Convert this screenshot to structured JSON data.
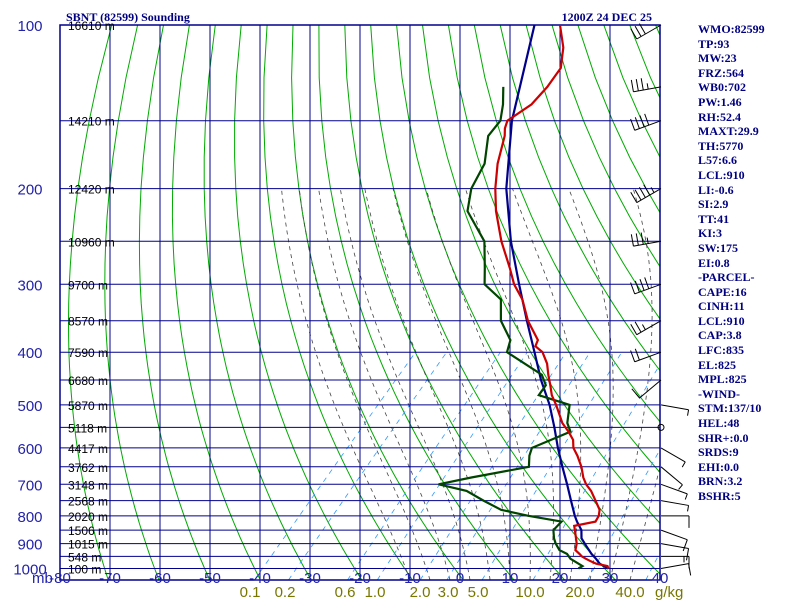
{
  "header": {
    "station": "SBNT (82599) Sounding",
    "time": "1200Z 24 DEC 25"
  },
  "indices": [
    "WMO:82599",
    "TP:93",
    "MW:23",
    "FRZ:564",
    "WB0:702",
    "PW:1.46",
    "RH:52.4",
    "MAXT:29.9",
    "TH:5770",
    "L57:6.6",
    "LCL:910",
    "LI:-0.6",
    "SI:2.9",
    "TT:41",
    "KI:3",
    "SW:175",
    "EI:0.8",
    "-PARCEL-",
    "CAPE:16",
    "CINH:11",
    "LCL:910",
    "CAP:3.8",
    "LFC:835",
    "EL:825",
    "MPL:825",
    "-WIND-",
    "STM:137/10",
    "HEL:48",
    "SHR+:0.0",
    "SRDS:9",
    "EHI:0.0",
    "BRN:3.2",
    "BSHR:5"
  ],
  "colors": {
    "grid": "#00008b",
    "temperature": "#cc0000",
    "dewpoint": "#004400",
    "parcel": "#00008b",
    "dry_adiabat": "#00aa00",
    "moist_adiabat": "#444444",
    "mixing_ratio": "#3399ff",
    "wind": "#000000"
  },
  "chart_data": {
    "type": "skew-t",
    "title": "SBNT (82599) Sounding",
    "p_range": [
      1050,
      100
    ],
    "t_range": [
      -80,
      40
    ],
    "pressure_label": "mb",
    "pressure_ticks": [
      100,
      200,
      300,
      400,
      500,
      600,
      700,
      800,
      900,
      1000
    ],
    "temp_ticks": [
      -80,
      -70,
      -60,
      -50,
      -40,
      -30,
      -20,
      -10,
      0,
      10,
      20,
      30,
      40
    ],
    "height_labels": [
      {
        "p": 100,
        "text": "16610 m"
      },
      {
        "p": 150,
        "text": "14210 m"
      },
      {
        "p": 200,
        "text": "12420 m"
      },
      {
        "p": 250,
        "text": "10960 m"
      },
      {
        "p": 300,
        "text": "9700 m"
      },
      {
        "p": 350,
        "text": "8570 m"
      },
      {
        "p": 400,
        "text": "7590 m"
      },
      {
        "p": 450,
        "text": "6680 m"
      },
      {
        "p": 500,
        "text": "5870 m"
      },
      {
        "p": 550,
        "text": "5118 m"
      },
      {
        "p": 600,
        "text": "4417 m"
      },
      {
        "p": 650,
        "text": "3762 m"
      },
      {
        "p": 700,
        "text": "3148 m"
      },
      {
        "p": 750,
        "text": "2568 m"
      },
      {
        "p": 800,
        "text": "2020 m"
      },
      {
        "p": 850,
        "text": "1506 m"
      },
      {
        "p": 900,
        "text": "1015 m"
      },
      {
        "p": 950,
        "text": "548 m"
      },
      {
        "p": 1000,
        "text": "100 m"
      }
    ],
    "mixing_ratio_labels": [
      "0.1",
      "0.2",
      "0.6",
      "1.0",
      "2.0",
      "3.0",
      "5.0",
      "10.0",
      "20.0",
      "40.0"
    ],
    "mixing_ratio_unit": "g/kg",
    "temperature": [
      [
        1000,
        27.6
      ],
      [
        990,
        27.0
      ],
      [
        980,
        24.3
      ],
      [
        970,
        22.8
      ],
      [
        960,
        21.4
      ],
      [
        950,
        20.1
      ],
      [
        940,
        19.2
      ],
      [
        925,
        17.7
      ],
      [
        900,
        16.8
      ],
      [
        880,
        15.7
      ],
      [
        850,
        14.0
      ],
      [
        835,
        13.1
      ],
      [
        820,
        16.6
      ],
      [
        800,
        16.2
      ],
      [
        780,
        15.3
      ],
      [
        750,
        12.8
      ],
      [
        720,
        10.2
      ],
      [
        700,
        8.0
      ],
      [
        680,
        6.2
      ],
      [
        650,
        3.9
      ],
      [
        620,
        1.1
      ],
      [
        600,
        -1.1
      ],
      [
        580,
        -2.6
      ],
      [
        560,
        -5.0
      ],
      [
        540,
        -7.8
      ],
      [
        520,
        -10.0
      ],
      [
        500,
        -12.3
      ],
      [
        480,
        -14.9
      ],
      [
        460,
        -17.0
      ],
      [
        440,
        -19.3
      ],
      [
        420,
        -21.5
      ],
      [
        400,
        -24.5
      ],
      [
        390,
        -27.0
      ],
      [
        380,
        -27.6
      ],
      [
        350,
        -33.1
      ],
      [
        320,
        -38.0
      ],
      [
        300,
        -42.4
      ],
      [
        280,
        -46.2
      ],
      [
        250,
        -52.7
      ],
      [
        220,
        -59.2
      ],
      [
        200,
        -63.4
      ],
      [
        180,
        -67.4
      ],
      [
        160,
        -71.0
      ],
      [
        155,
        -72.3
      ],
      [
        150,
        -73.2
      ],
      [
        140,
        -71.3
      ],
      [
        130,
        -71.3
      ],
      [
        120,
        -72.0
      ],
      [
        110,
        -75.2
      ],
      [
        100,
        -79.9
      ]
    ],
    "dewpoint": [
      [
        1000,
        21.6
      ],
      [
        990,
        22.0
      ],
      [
        960,
        18.3
      ],
      [
        940,
        16.7
      ],
      [
        925,
        14.5
      ],
      [
        900,
        12.6
      ],
      [
        880,
        11.3
      ],
      [
        850,
        9.7
      ],
      [
        820,
        9.8
      ],
      [
        800,
        2.1
      ],
      [
        780,
        -4.4
      ],
      [
        750,
        -9.6
      ],
      [
        720,
        -14.7
      ],
      [
        700,
        -21.5
      ],
      [
        680,
        -16.2
      ],
      [
        650,
        -6.6
      ],
      [
        620,
        -8.5
      ],
      [
        600,
        -9.4
      ],
      [
        560,
        -4.6
      ],
      [
        540,
        -6.8
      ],
      [
        500,
        -9.6
      ],
      [
        480,
        -17.5
      ],
      [
        460,
        -17.9
      ],
      [
        440,
        -20.6
      ],
      [
        400,
        -31.6
      ],
      [
        380,
        -33.1
      ],
      [
        350,
        -38.5
      ],
      [
        320,
        -42.3
      ],
      [
        300,
        -48.3
      ],
      [
        280,
        -51.2
      ],
      [
        250,
        -56.1
      ],
      [
        220,
        -64.9
      ],
      [
        200,
        -68.2
      ],
      [
        180,
        -70.0
      ],
      [
        160,
        -74.3
      ],
      [
        150,
        -74.6
      ],
      [
        140,
        -77.0
      ],
      [
        130,
        -80.1
      ]
    ],
    "parcel": [
      [
        1000,
        27.6
      ],
      [
        980,
        25.0
      ],
      [
        960,
        23.4
      ],
      [
        940,
        21.6
      ],
      [
        910,
        19.2
      ],
      [
        880,
        16.8
      ],
      [
        850,
        15.3
      ],
      [
        820,
        12.9
      ],
      [
        800,
        11.4
      ],
      [
        750,
        7.9
      ],
      [
        700,
        4.2
      ],
      [
        650,
        0.1
      ],
      [
        600,
        -4.2
      ],
      [
        550,
        -8.6
      ],
      [
        500,
        -13.6
      ],
      [
        450,
        -19.8
      ],
      [
        400,
        -26.1
      ],
      [
        350,
        -33.3
      ],
      [
        300,
        -41.4
      ],
      [
        250,
        -50.8
      ],
      [
        200,
        -61.2
      ],
      [
        150,
        -72.3
      ],
      [
        100,
        -85.0
      ]
    ],
    "wind_barbs": [
      {
        "p": 1000,
        "dir": 80,
        "spd": 10
      },
      {
        "p": 950,
        "dir": 90,
        "spd": 15
      },
      {
        "p": 900,
        "dir": 100,
        "spd": 10
      },
      {
        "p": 850,
        "dir": 110,
        "spd": 10
      },
      {
        "p": 800,
        "dir": 90,
        "spd": 10
      },
      {
        "p": 750,
        "dir": 100,
        "spd": 5
      },
      {
        "p": 700,
        "dir": 110,
        "spd": 5
      },
      {
        "p": 650,
        "dir": 130,
        "spd": 5
      },
      {
        "p": 600,
        "dir": 120,
        "spd": 5
      },
      {
        "p": 550,
        "dir": 0,
        "spd": 0
      },
      {
        "p": 500,
        "dir": 100,
        "spd": 5
      },
      {
        "p": 450,
        "dir": 230,
        "spd": 10
      },
      {
        "p": 400,
        "dir": 250,
        "spd": 20
      },
      {
        "p": 350,
        "dir": 240,
        "spd": 25
      },
      {
        "p": 300,
        "dir": 250,
        "spd": 40
      },
      {
        "p": 250,
        "dir": 260,
        "spd": 35
      },
      {
        "p": 200,
        "dir": 240,
        "spd": 45
      },
      {
        "p": 150,
        "dir": 250,
        "spd": 40
      },
      {
        "p": 130,
        "dir": 260,
        "spd": 35
      },
      {
        "p": 100,
        "dir": 240,
        "spd": 30
      }
    ]
  }
}
